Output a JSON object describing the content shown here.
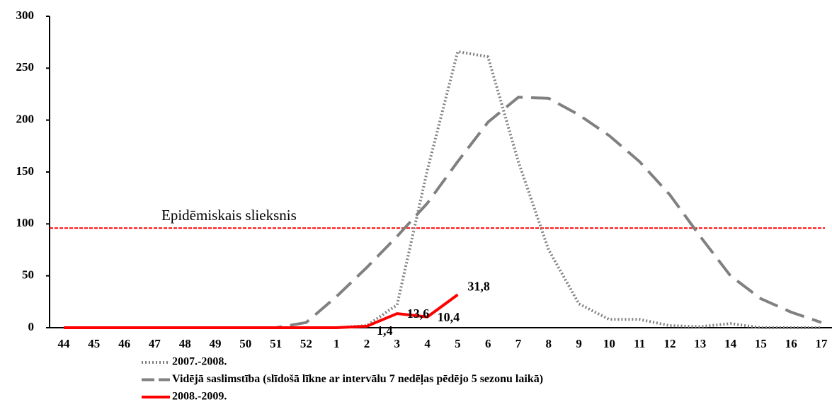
{
  "chart_data": {
    "type": "line",
    "categories": [
      "44",
      "45",
      "46",
      "47",
      "48",
      "49",
      "50",
      "51",
      "52",
      "1",
      "2",
      "3",
      "4",
      "5",
      "6",
      "7",
      "8",
      "9",
      "10",
      "11",
      "12",
      "13",
      "14",
      "15",
      "16",
      "17"
    ],
    "series": [
      {
        "name": "2007.-2008.",
        "color": "#808080",
        "dash": "dotted",
        "values": [
          0,
          0,
          0,
          0,
          0,
          0,
          0,
          0,
          0,
          0,
          2,
          22,
          152,
          266,
          261,
          160,
          75,
          23,
          8,
          8,
          2,
          1,
          4,
          0,
          0,
          0
        ]
      },
      {
        "name": "Vidējā saslimstība (slīdošā līkne ar intervālu 7 nedēļas pēdējo 5 sezonu laikā)",
        "color": "#808080",
        "dash": "dashed",
        "values": [
          0,
          0,
          0,
          0,
          0,
          0,
          0,
          0,
          5,
          30,
          58,
          88,
          120,
          160,
          198,
          222,
          221,
          205,
          185,
          160,
          128,
          88,
          50,
          28,
          15,
          5
        ]
      },
      {
        "name": "2008.-2009.",
        "color": "#ff0000",
        "dash": "solid",
        "values": [
          0,
          0,
          0,
          0,
          0,
          0,
          0,
          0,
          0,
          0,
          1.4,
          13.6,
          10.4,
          31.8,
          null,
          null,
          null,
          null,
          null,
          null,
          null,
          null,
          null,
          null,
          null,
          null
        ],
        "value_labels": [
          null,
          null,
          null,
          null,
          null,
          null,
          null,
          null,
          null,
          null,
          "1,4",
          "13,6",
          "10,4",
          "31,8",
          null,
          null,
          null,
          null,
          null,
          null,
          null,
          null,
          null,
          null,
          null,
          null
        ]
      }
    ],
    "ylim": [
      0,
      300
    ],
    "yticks": [
      0,
      50,
      100,
      150,
      200,
      250,
      300
    ],
    "threshold": {
      "value": 96,
      "label": "Epidēmiskais slieksnis",
      "color": "#ff0000"
    }
  }
}
